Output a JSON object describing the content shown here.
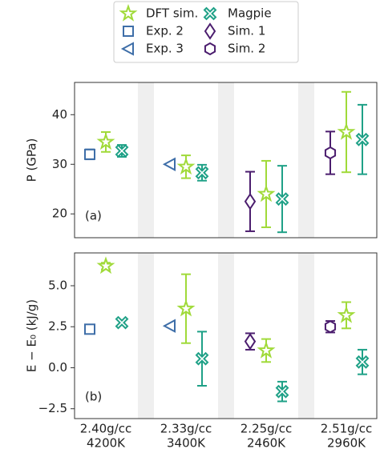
{
  "chart_data": [
    {
      "type": "errorbar",
      "ylabel": "P (GPa)",
      "panel_label": "(a)",
      "ylim": [
        15.2,
        46.5
      ],
      "yticks": [
        20,
        30,
        40
      ],
      "series": [
        {
          "name": "DFT sim.",
          "color": "#a0da39",
          "marker": "star",
          "values": [
            34.5,
            29.5,
            24,
            36.5
          ],
          "errors": [
            2,
            2.3,
            6.7,
            8.1
          ]
        },
        {
          "name": "Exp. 2",
          "color": "#3e6ea8",
          "marker": "square",
          "values": [
            32,
            null,
            null,
            null
          ],
          "errors": [
            1,
            null,
            null,
            null
          ]
        },
        {
          "name": "Exp. 3",
          "color": "#3e6ea8",
          "marker": "triangle-left",
          "values": [
            null,
            30,
            null,
            null
          ]
        },
        {
          "name": "Magpie",
          "color": "#1fa187",
          "marker": "x",
          "values": [
            32.7,
            28.3,
            23,
            35
          ],
          "errors": [
            1.2,
            1.6,
            6.7,
            7
          ]
        },
        {
          "name": "Sim. 1",
          "color": "#4b1d6e",
          "marker": "diamond",
          "values": [
            null,
            null,
            22.5,
            null
          ],
          "errors": [
            null,
            null,
            6,
            null
          ]
        },
        {
          "name": "Sim. 2",
          "color": "#4b1d6e",
          "marker": "hexagon",
          "values": [
            null,
            null,
            null,
            32.3
          ],
          "errors": [
            null,
            null,
            null,
            4.3
          ]
        }
      ]
    },
    {
      "type": "errorbar",
      "ylabel": "E − E₀ (kJ/g)",
      "panel_label": "(b)",
      "ylim": [
        -3.1,
        7.0
      ],
      "yticks": [
        {
          "value": -2.5,
          "label": "−2.5"
        },
        {
          "value": 0,
          "label": "0.0"
        },
        {
          "value": 2.5,
          "label": "2.5"
        },
        {
          "value": 5,
          "label": "5.0"
        }
      ],
      "categories": [
        [
          "2.40g/cc",
          "4200K"
        ],
        [
          "2.33g/cc",
          "3400K"
        ],
        [
          "2.25g/cc",
          "2460K"
        ],
        [
          "2.51g/cc",
          "2960K"
        ]
      ],
      "series": [
        {
          "color": "#a0da39",
          "marker": "star",
          "values": [
            6.2,
            3.6,
            1.05,
            3.2
          ],
          "errors": [
            0.2,
            2.1,
            0.7,
            0.8
          ]
        },
        {
          "color": "#3e6ea8",
          "marker": "square",
          "values": [
            2.35,
            null,
            null,
            null
          ],
          "errors": [
            0.15,
            null,
            null,
            null
          ]
        },
        {
          "color": "#3e6ea8",
          "marker": "triangle-left",
          "values": [
            null,
            2.55,
            null,
            null
          ]
        },
        {
          "color": "#1fa187",
          "marker": "x",
          "values": [
            2.75,
            0.55,
            -1.45,
            0.35
          ],
          "errors": [
            0.15,
            1.65,
            0.6,
            0.75
          ]
        },
        {
          "color": "#4b1d6e",
          "marker": "diamond",
          "values": [
            null,
            null,
            1.6,
            null
          ],
          "errors": [
            null,
            null,
            0.5,
            null
          ]
        },
        {
          "color": "#4b1d6e",
          "marker": "hexagon",
          "values": [
            null,
            null,
            null,
            2.5
          ],
          "errors": [
            null,
            null,
            null,
            0.35
          ]
        }
      ]
    }
  ]
}
